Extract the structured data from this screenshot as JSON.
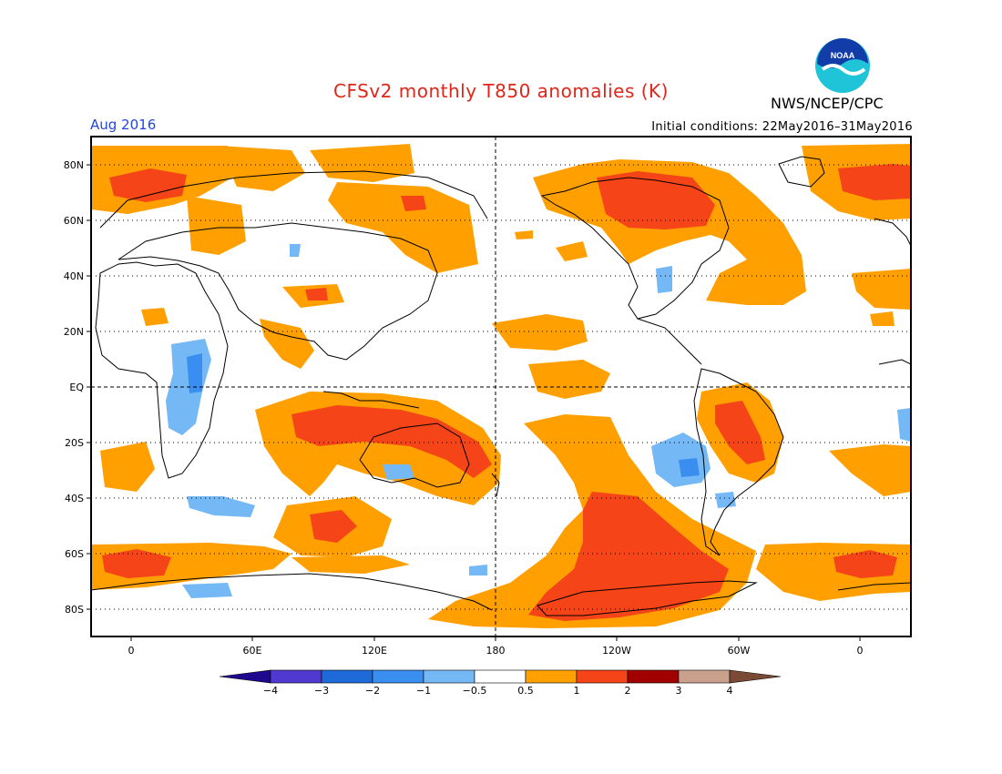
{
  "header": {
    "title": "CFSv2 monthly T850 anomalies (K)",
    "agency": "NWS/NCEP/CPC",
    "logo_text": "NOAA",
    "month": "Aug 2016",
    "initial_conditions": "Initial conditions: 22May2016–31May2016"
  },
  "map": {
    "lat_labels": [
      "80N",
      "60N",
      "40N",
      "20N",
      "EQ",
      "20S",
      "40S",
      "60S",
      "80S"
    ],
    "lon_labels": [
      "0",
      "60E",
      "120E",
      "180",
      "120W",
      "60W",
      "0"
    ]
  },
  "colorbar": {
    "tick_labels": [
      "−4",
      "−3",
      "−2",
      "−1",
      "−0.5",
      "0.5",
      "1",
      "2",
      "3",
      "4"
    ],
    "colors": [
      "#1e0890",
      "#5039d0",
      "#1d6ad8",
      "#3a8ef0",
      "#74b8f5",
      "#ffffff",
      "#ffa000",
      "#f44418",
      "#a00000",
      "#c8a08c",
      "#7a4a36"
    ]
  },
  "colors": {
    "warm1": "#ffa000",
    "warm2": "#f44418",
    "cool1": "#74b8f5",
    "cool2": "#3a8ef0",
    "title": "#e0261a",
    "month": "#2345e0"
  }
}
